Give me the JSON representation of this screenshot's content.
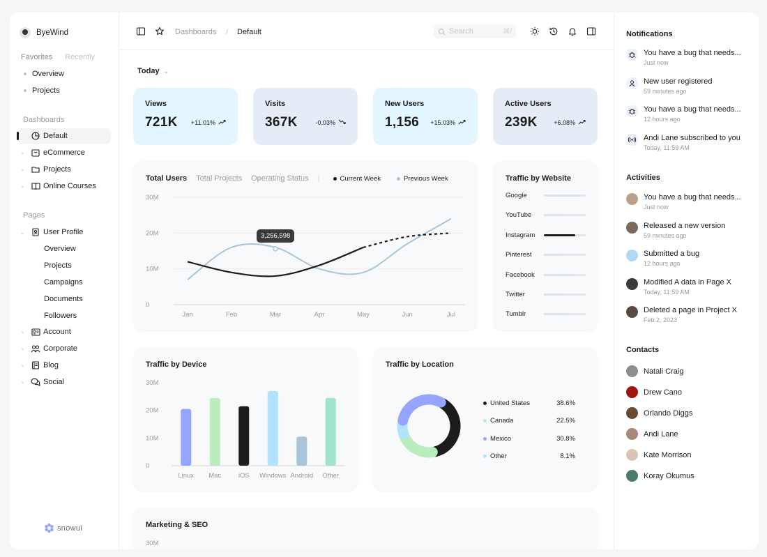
{
  "sidebar": {
    "user": "ByeWind",
    "tabs": [
      "Favorites",
      "Recently"
    ],
    "favorites": [
      "Overview",
      "Projects"
    ],
    "dashboards_label": "Dashboards",
    "dashboards": [
      {
        "label": "Default",
        "icon": "pie-chart-icon"
      },
      {
        "label": "eCommerce",
        "icon": "shopping-bag-icon"
      },
      {
        "label": "Projects",
        "icon": "folder-icon"
      },
      {
        "label": "Online Courses",
        "icon": "book-icon"
      }
    ],
    "pages_label": "Pages",
    "user_profile": "User Profile",
    "user_profile_items": [
      "Overview",
      "Projects",
      "Campaigns",
      "Documents",
      "Followers"
    ],
    "pages": [
      {
        "label": "Account",
        "icon": "id-card-icon"
      },
      {
        "label": "Corporate",
        "icon": "users-icon"
      },
      {
        "label": "Blog",
        "icon": "notebook-icon"
      },
      {
        "label": "Social",
        "icon": "chat-bubbles-icon"
      }
    ],
    "brand": "snowui"
  },
  "header": {
    "crumb_1": "Dashboards",
    "sep": "/",
    "crumb_2": "Default",
    "search_placeholder": "Search",
    "search_shortcut": "⌘/"
  },
  "main": {
    "period": "Today",
    "stats": [
      {
        "label": "Views",
        "value": "721K",
        "change": "+11.01%",
        "bg": "#e3f5ff"
      },
      {
        "label": "Visits",
        "value": "367K",
        "change": "-0.03%",
        "bg": "#e5ecf6"
      },
      {
        "label": "New Users",
        "value": "1,156",
        "change": "+15.03%",
        "bg": "#e3f5ff"
      },
      {
        "label": "Active Users",
        "value": "239K",
        "change": "+6.08%",
        "bg": "#e5ecf6"
      }
    ],
    "users_chart": {
      "tabs": [
        "Total Users",
        "Total Projects",
        "Operating Status"
      ],
      "legend": [
        {
          "name": "Current Week",
          "color": "#1c1c1c"
        },
        {
          "name": "Previous Week",
          "color": "#a8c5da"
        }
      ],
      "tooltip": "3,256,598"
    },
    "website": {
      "title": "Traffic by Website",
      "sites": [
        "Google",
        "YouTube",
        "Instagram",
        "Pinterest",
        "Facebook",
        "Twitter",
        "Tumblr"
      ]
    },
    "device_title": "Traffic by Device",
    "location": {
      "title": "Traffic by Location",
      "items": [
        {
          "name": "United States",
          "pct": "38.6%",
          "color": "#1c1c1c"
        },
        {
          "name": "Canada",
          "pct": "22.5%",
          "color": "#baedbd"
        },
        {
          "name": "Mexico",
          "pct": "30.8%",
          "color": "#95a4fc"
        },
        {
          "name": "Other",
          "pct": "8.1%",
          "color": "#b1e3ff"
        }
      ]
    },
    "marketing": {
      "title": "Marketing & SEO",
      "ytick": "30M"
    }
  },
  "chart_data": [
    {
      "type": "line",
      "x": [
        "Jan",
        "Feb",
        "Mar",
        "Apr",
        "May",
        "Jun",
        "Jul"
      ],
      "yticks": [
        "30M",
        "20M",
        "10M",
        "0"
      ],
      "ylim": [
        0,
        30
      ],
      "series": [
        {
          "name": "Current Week",
          "values": [
            12,
            9,
            8,
            11,
            16,
            19,
            20
          ]
        },
        {
          "name": "Previous Week",
          "values": [
            7,
            16,
            16,
            10,
            9,
            17,
            24
          ]
        }
      ]
    },
    {
      "type": "bar",
      "categories": [
        "Linux",
        "Mac",
        "iOS",
        "Windows",
        "Android",
        "Other"
      ],
      "yticks": [
        "30M",
        "20M",
        "10M",
        "0"
      ],
      "ylim": [
        0,
        30
      ],
      "values": [
        20.5,
        24.5,
        21.5,
        27,
        10.5,
        24.5
      ],
      "colors": [
        "#95a4fc",
        "#baedbd",
        "#1c1c1c",
        "#b1e3ff",
        "#a8c5da",
        "#a1e3cb"
      ]
    },
    {
      "type": "pie",
      "categories": [
        "United States",
        "Canada",
        "Mexico",
        "Other"
      ],
      "values": [
        38.6,
        22.5,
        30.8,
        8.1
      ]
    }
  ],
  "website_levels": [
    0.9,
    0.45,
    0.75,
    0.4,
    0.72,
    0.45,
    0.55
  ],
  "right": {
    "notifications_title": "Notifications",
    "notifications": [
      {
        "text": "You have a bug that needs...",
        "time": "Just now",
        "icon": "bug-icon"
      },
      {
        "text": "New user registered",
        "time": "59 minutes ago",
        "icon": "user-icon"
      },
      {
        "text": "You have a bug that needs...",
        "time": "12 hours ago",
        "icon": "bug-icon"
      },
      {
        "text": "Andi Lane subscribed to you",
        "time": "Today, 11:59 AM",
        "icon": "broadcast-icon"
      }
    ],
    "activities_title": "Activities",
    "activities": [
      {
        "text": "You have a bug that needs...",
        "time": "Just now",
        "color": "#b9a18b"
      },
      {
        "text": "Released a new version",
        "time": "59 minutes ago",
        "color": "#7b6a5c"
      },
      {
        "text": "Submitted a bug",
        "time": "12 hours ago",
        "color": "#b1d9f5"
      },
      {
        "text": "Modified A data in Page X",
        "time": "Today, 11:59 AM",
        "color": "#3a3a3a"
      },
      {
        "text": "Deleted a page in Project X",
        "time": "Feb 2, 2023",
        "color": "#5a4a40"
      }
    ],
    "contacts_title": "Contacts",
    "contacts": [
      {
        "name": "Natali Craig",
        "color": "#8e8e8e"
      },
      {
        "name": "Drew Cano",
        "color": "#a0150f"
      },
      {
        "name": "Orlando Diggs",
        "color": "#6b4a33"
      },
      {
        "name": "Andi Lane",
        "color": "#a8887a"
      },
      {
        "name": "Kate Morrison",
        "color": "#d9c4b5"
      },
      {
        "name": "Koray Okumus",
        "color": "#4c7a6a"
      }
    ]
  }
}
